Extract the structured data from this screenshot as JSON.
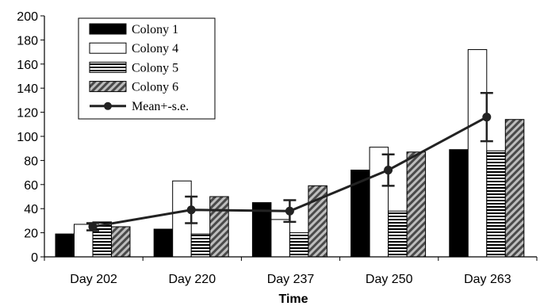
{
  "chart_data": {
    "type": "bar",
    "xlabel": "Time",
    "ylabel": "",
    "ylim": [
      0,
      200
    ],
    "yticks": [
      0,
      20,
      40,
      60,
      80,
      100,
      120,
      140,
      160,
      180,
      200
    ],
    "categories": [
      "Day 202",
      "Day 220",
      "Day 237",
      "Day 250",
      "Day 263"
    ],
    "series": [
      {
        "name": "Colony 1",
        "values": [
          19,
          23,
          45,
          72,
          89
        ],
        "fill": "solid-black"
      },
      {
        "name": "Colony 4",
        "values": [
          27,
          63,
          31,
          91,
          172
        ],
        "fill": "white"
      },
      {
        "name": "Colony 5",
        "values": [
          29,
          19,
          20,
          38,
          88
        ],
        "fill": "horizontal-stripes"
      },
      {
        "name": "Colony 6",
        "values": [
          25,
          50,
          59,
          87,
          114
        ],
        "fill": "diagonal-stripes"
      }
    ],
    "line_series": {
      "name": "Mean+-s.e.",
      "values": [
        25,
        39,
        38,
        72,
        116
      ],
      "error": [
        3,
        11,
        9,
        13,
        20
      ]
    },
    "legend_position": "top-left",
    "grid": false
  }
}
